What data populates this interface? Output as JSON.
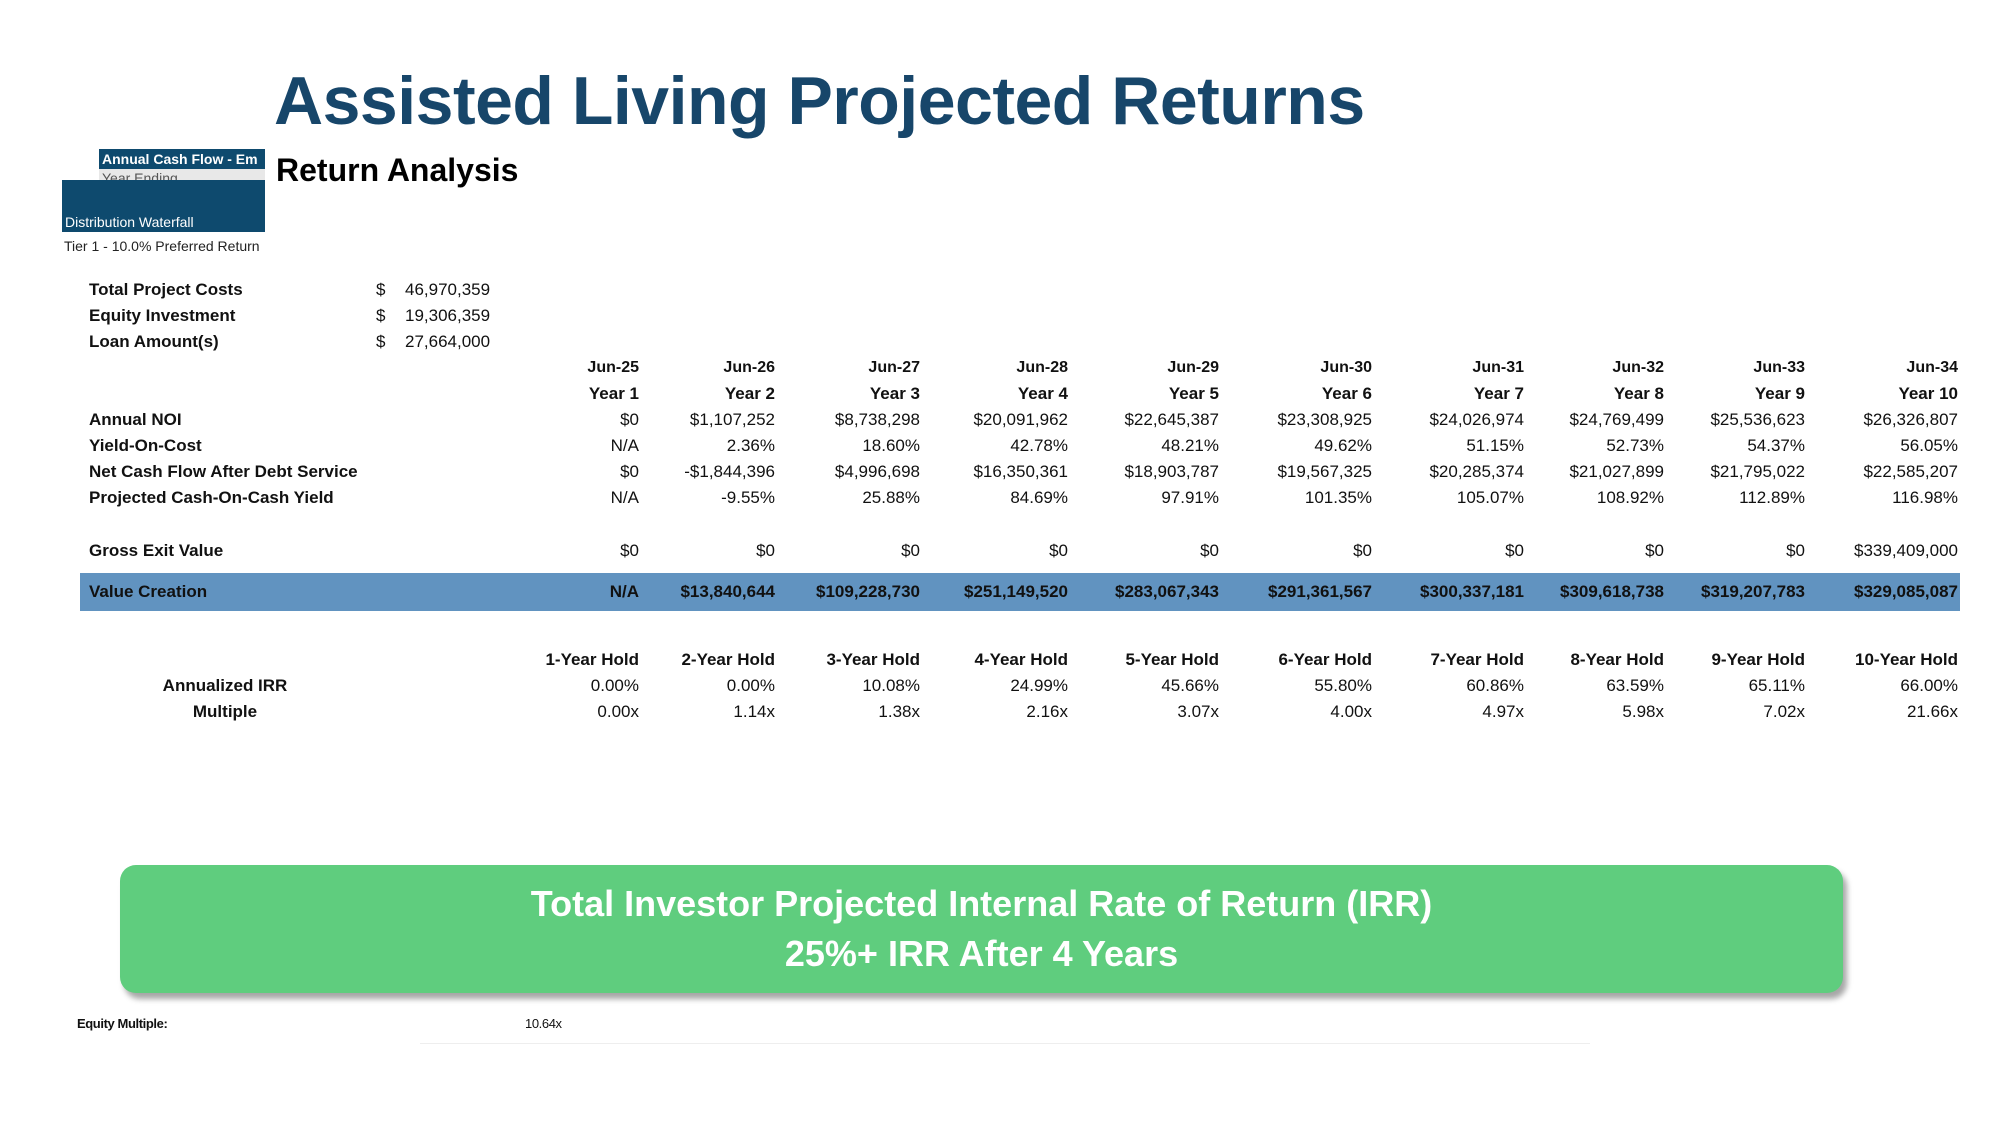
{
  "title": "Assisted Living Projected Returns",
  "subtitle": "Return Analysis",
  "overlay": {
    "annual_cash_flow": "Annual Cash Flow - Em",
    "year_ending": "Year Ending",
    "distribution_waterfall": "Distribution Waterfall",
    "tier1": "Tier 1 - 10.0% Preferred Return"
  },
  "summary": [
    {
      "label": "Total Project Costs",
      "currency": "$",
      "value": "46,970,359"
    },
    {
      "label": "Equity Investment",
      "currency": "$",
      "value": "19,306,359"
    },
    {
      "label": "Loan Amount(s)",
      "currency": "$",
      "value": "27,664,000"
    }
  ],
  "table": {
    "dates": [
      "Jun-25",
      "Jun-26",
      "Jun-27",
      "Jun-28",
      "Jun-29",
      "Jun-30",
      "Jun-31",
      "Jun-32",
      "Jun-33",
      "Jun-34"
    ],
    "years": [
      "Year 1",
      "Year 2",
      "Year 3",
      "Year 4",
      "Year 5",
      "Year 6",
      "Year 7",
      "Year 8",
      "Year 9",
      "Year 10"
    ],
    "rows": [
      {
        "label": "Annual NOI",
        "values": [
          "$0",
          "$1,107,252",
          "$8,738,298",
          "$20,091,962",
          "$22,645,387",
          "$23,308,925",
          "$24,026,974",
          "$24,769,499",
          "$25,536,623",
          "$26,326,807"
        ]
      },
      {
        "label": "Yield-On-Cost",
        "values": [
          "N/A",
          "2.36%",
          "18.60%",
          "42.78%",
          "48.21%",
          "49.62%",
          "51.15%",
          "52.73%",
          "54.37%",
          "56.05%"
        ]
      },
      {
        "label": "Net Cash Flow After Debt Service",
        "values": [
          "$0",
          "-$1,844,396",
          "$4,996,698",
          "$16,350,361",
          "$18,903,787",
          "$19,567,325",
          "$20,285,374",
          "$21,027,899",
          "$21,795,022",
          "$22,585,207"
        ]
      },
      {
        "label": "Projected Cash-On-Cash Yield",
        "values": [
          "N/A",
          "-9.55%",
          "25.88%",
          "84.69%",
          "97.91%",
          "101.35%",
          "105.07%",
          "108.92%",
          "112.89%",
          "116.98%"
        ]
      },
      {
        "label": "Gross Exit Value",
        "values": [
          "$0",
          "$0",
          "$0",
          "$0",
          "$0",
          "$0",
          "$0",
          "$0",
          "$0",
          "$339,409,000"
        ]
      }
    ],
    "value_creation": {
      "label": "Value Creation",
      "values": [
        "N/A",
        "$13,840,644",
        "$109,228,730",
        "$251,149,520",
        "$283,067,343",
        "$291,361,567",
        "$300,337,181",
        "$309,618,738",
        "$319,207,783",
        "$329,085,087"
      ]
    }
  },
  "holds": {
    "headers": [
      "1-Year Hold",
      "2-Year Hold",
      "3-Year Hold",
      "4-Year Hold",
      "5-Year Hold",
      "6-Year Hold",
      "7-Year Hold",
      "8-Year Hold",
      "9-Year Hold",
      "10-Year Hold"
    ],
    "irr_label": "Annualized IRR",
    "irr": [
      "0.00%",
      "0.00%",
      "10.08%",
      "24.99%",
      "45.66%",
      "55.80%",
      "60.86%",
      "63.59%",
      "65.11%",
      "66.00%"
    ],
    "multiple_label": "Multiple",
    "multiple": [
      "0.00x",
      "1.14x",
      "1.38x",
      "2.16x",
      "3.07x",
      "4.00x",
      "4.97x",
      "5.98x",
      "7.02x",
      "21.66x"
    ]
  },
  "callout": {
    "line1": "Total Investor Projected Internal Rate of Return (IRR)",
    "line2": "25%+ IRR After 4 Years"
  },
  "equity_multiple": {
    "label": "Equity Multiple:",
    "value": "10.64x"
  },
  "colors": {
    "title": "#17466a",
    "band": "#6193c0",
    "callout": "#5fcd7e",
    "header_box": "#0e4a6e"
  }
}
